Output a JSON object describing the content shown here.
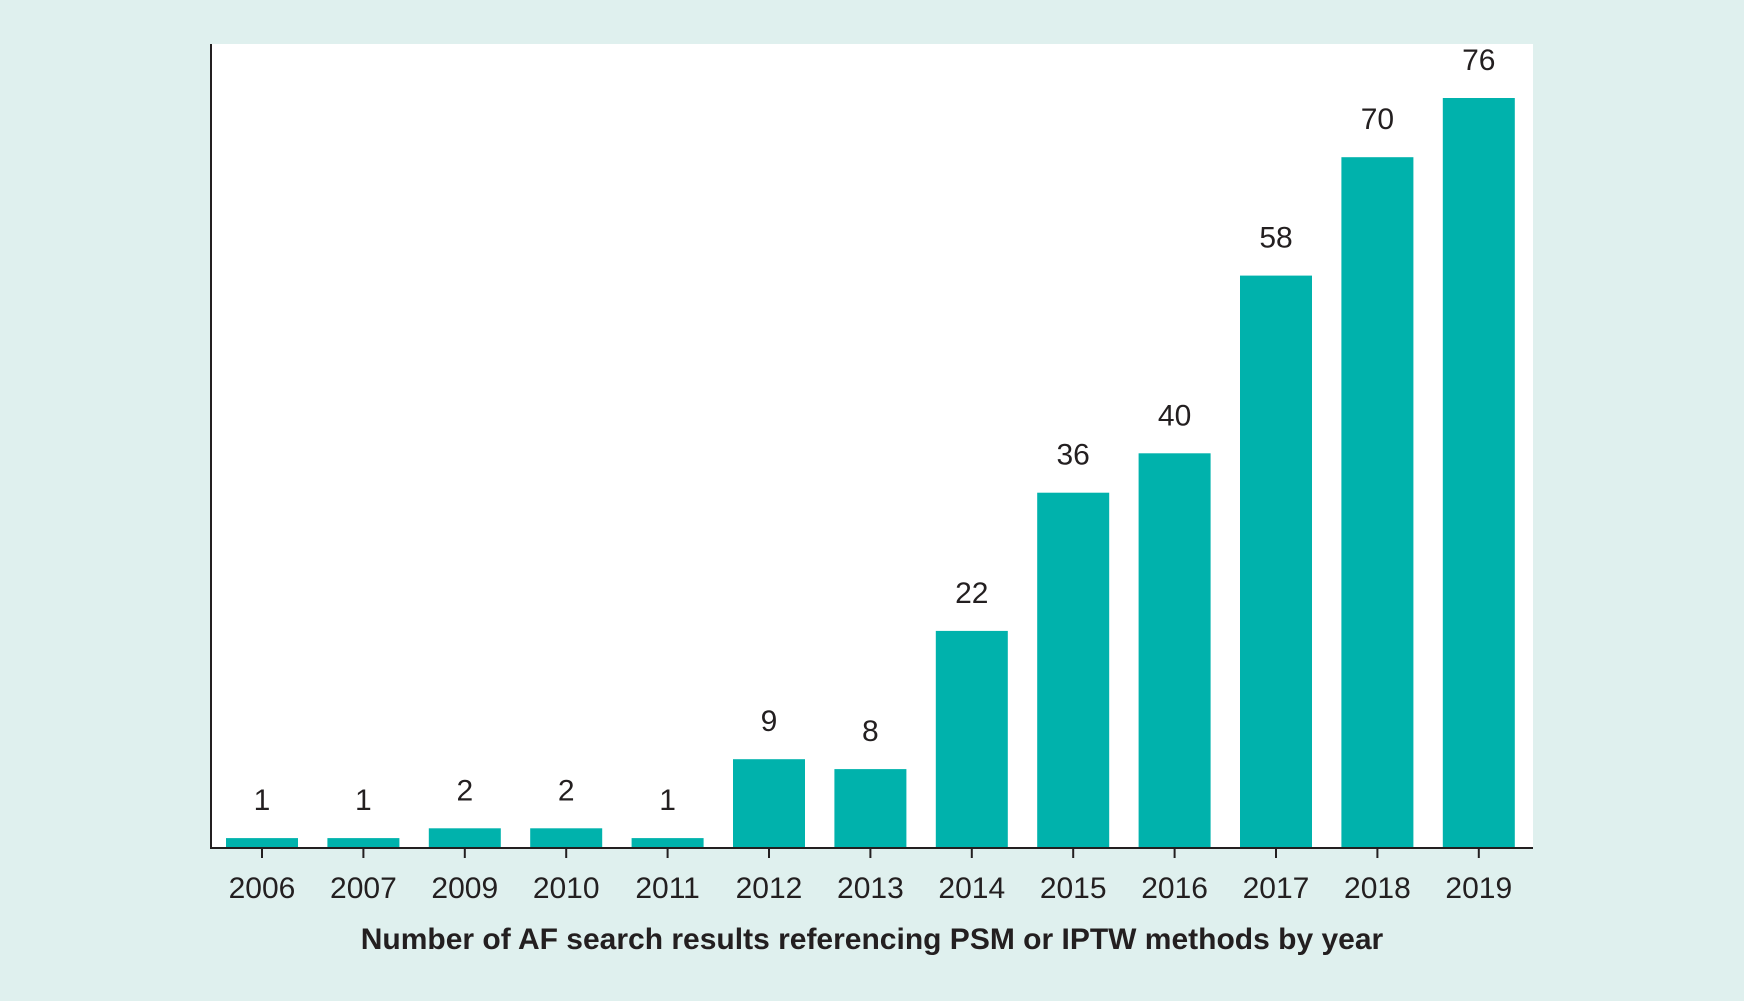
{
  "colors": {
    "background": "#dff0ee",
    "plot_area": "#ffffff",
    "bar": "#00b2ac",
    "axis": "#231f20",
    "text": "#231f20"
  },
  "chart_data": {
    "type": "bar",
    "categories": [
      "2006",
      "2007",
      "2009",
      "2010",
      "2011",
      "2012",
      "2013",
      "2014",
      "2015",
      "2016",
      "2017",
      "2018",
      "2019"
    ],
    "values": [
      1,
      1,
      2,
      2,
      1,
      9,
      8,
      22,
      36,
      40,
      58,
      70,
      76
    ],
    "data_labels": [
      "1",
      "1",
      "2",
      "2",
      "1",
      "9",
      "8",
      "22",
      "36",
      "40",
      "58",
      "70",
      "76"
    ],
    "xlabel": "Number of AF search results referencing PSM or IPTW methods by year",
    "ylabel": "",
    "ylim": [
      0,
      76
    ],
    "grid": false,
    "legend": "none"
  }
}
